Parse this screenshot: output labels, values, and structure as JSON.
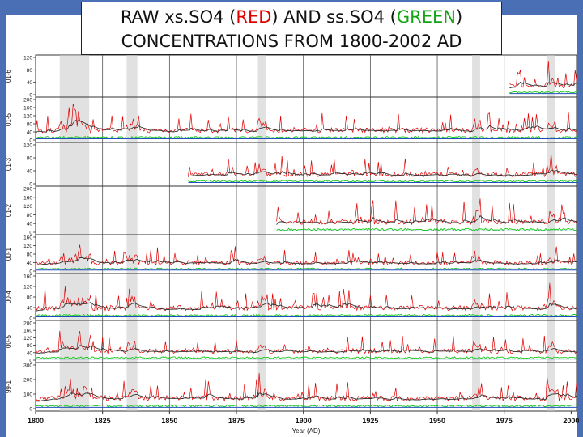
{
  "title": {
    "line1_prefix": "RAW xs.SO4 (",
    "line1_red": "RED",
    "line1_mid": ") AND ss.SO4 (",
    "line1_green": "GREEN",
    "line1_suffix": ")",
    "line2": "CONCENTRATIONS FROM 1800-2002 AD"
  },
  "colors": {
    "frame": "#4a6fb5",
    "xs_series": "#e00000",
    "ss_series": "#13c813",
    "smooth": "#333333",
    "shade": "#c8c8c8"
  },
  "chart_data": {
    "type": "line",
    "title": "RAW xs.SO4 (RED) AND ss.SO4 (GREEN) CONCENTRATIONS FROM 1800-2002 AD",
    "xlabel": "Year (AD)",
    "xlim": [
      1800,
      2002
    ],
    "xticks": [
      1800,
      1825,
      1850,
      1875,
      1900,
      1925,
      1950,
      1975,
      2000
    ],
    "vertical_grid_years": [
      1825,
      1850,
      1875,
      1900,
      1925,
      1950,
      1975
    ],
    "shaded_periods": [
      [
        1809,
        1820
      ],
      [
        1834,
        1838
      ],
      [
        1883,
        1886
      ],
      [
        1963,
        1966
      ],
      [
        1991,
        1994
      ]
    ],
    "series": [
      {
        "name": "xs.SO4",
        "color": "red"
      },
      {
        "name": "ss.SO4",
        "color": "green"
      }
    ],
    "panels": [
      {
        "label": "01-6",
        "ticks": [
          0,
          40,
          80,
          120
        ],
        "start": 1977,
        "end": 2002
      },
      {
        "label": "01-5",
        "ticks": [
          0,
          40,
          80,
          120,
          160,
          200
        ],
        "start": 1800,
        "end": 2002
      },
      {
        "label": "01-3",
        "ticks": [
          0,
          40,
          80,
          120
        ],
        "start": 1857,
        "end": 2002
      },
      {
        "label": "01-2",
        "ticks": [
          0,
          40,
          80,
          120,
          160,
          200
        ],
        "start": 1890,
        "end": 2002
      },
      {
        "label": "00-1",
        "ticks": [
          0,
          40,
          80,
          120,
          160
        ],
        "start": 1800,
        "end": 2002
      },
      {
        "label": "00-4",
        "ticks": [
          0,
          40,
          80,
          120,
          160
        ],
        "start": 1800,
        "end": 2002
      },
      {
        "label": "00-5",
        "ticks": [
          0,
          40,
          80,
          120,
          160,
          200
        ],
        "start": 1800,
        "end": 2002
      },
      {
        "label": "99-1",
        "ticks": [
          0,
          100,
          200,
          300
        ],
        "start": 1800,
        "end": 2002
      }
    ]
  }
}
